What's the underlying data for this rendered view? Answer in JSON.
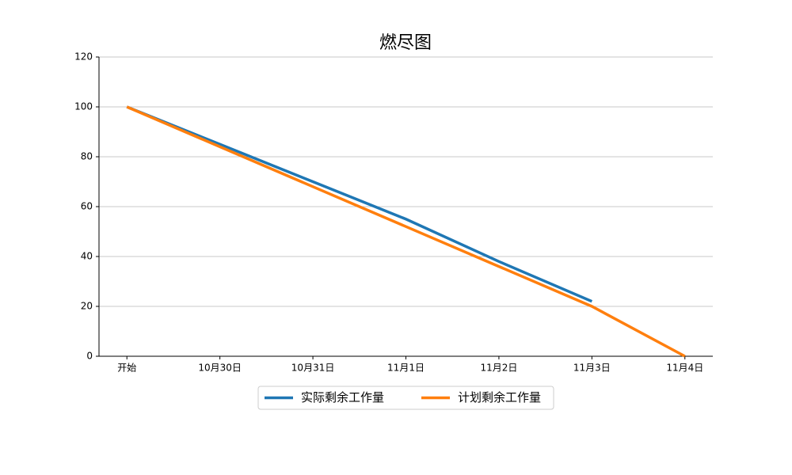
{
  "chart_data": {
    "type": "line",
    "title": "燃尽图",
    "categories": [
      "开始",
      "10月30日",
      "10月31日",
      "11月1日",
      "11月2日",
      "11月3日",
      "11月4日"
    ],
    "series": [
      {
        "name": "实际剩余工作量",
        "color": "#1f77b4",
        "values": [
          100,
          85,
          70,
          55,
          38,
          22,
          null
        ]
      },
      {
        "name": "计划剩余工作量",
        "color": "#ff7f0e",
        "values": [
          100,
          84,
          68,
          52,
          36,
          20,
          0
        ]
      }
    ],
    "ylim": [
      0,
      120
    ],
    "yticks": [
      0,
      20,
      40,
      60,
      80,
      100,
      120
    ],
    "grid": true,
    "legend": "bottom"
  }
}
